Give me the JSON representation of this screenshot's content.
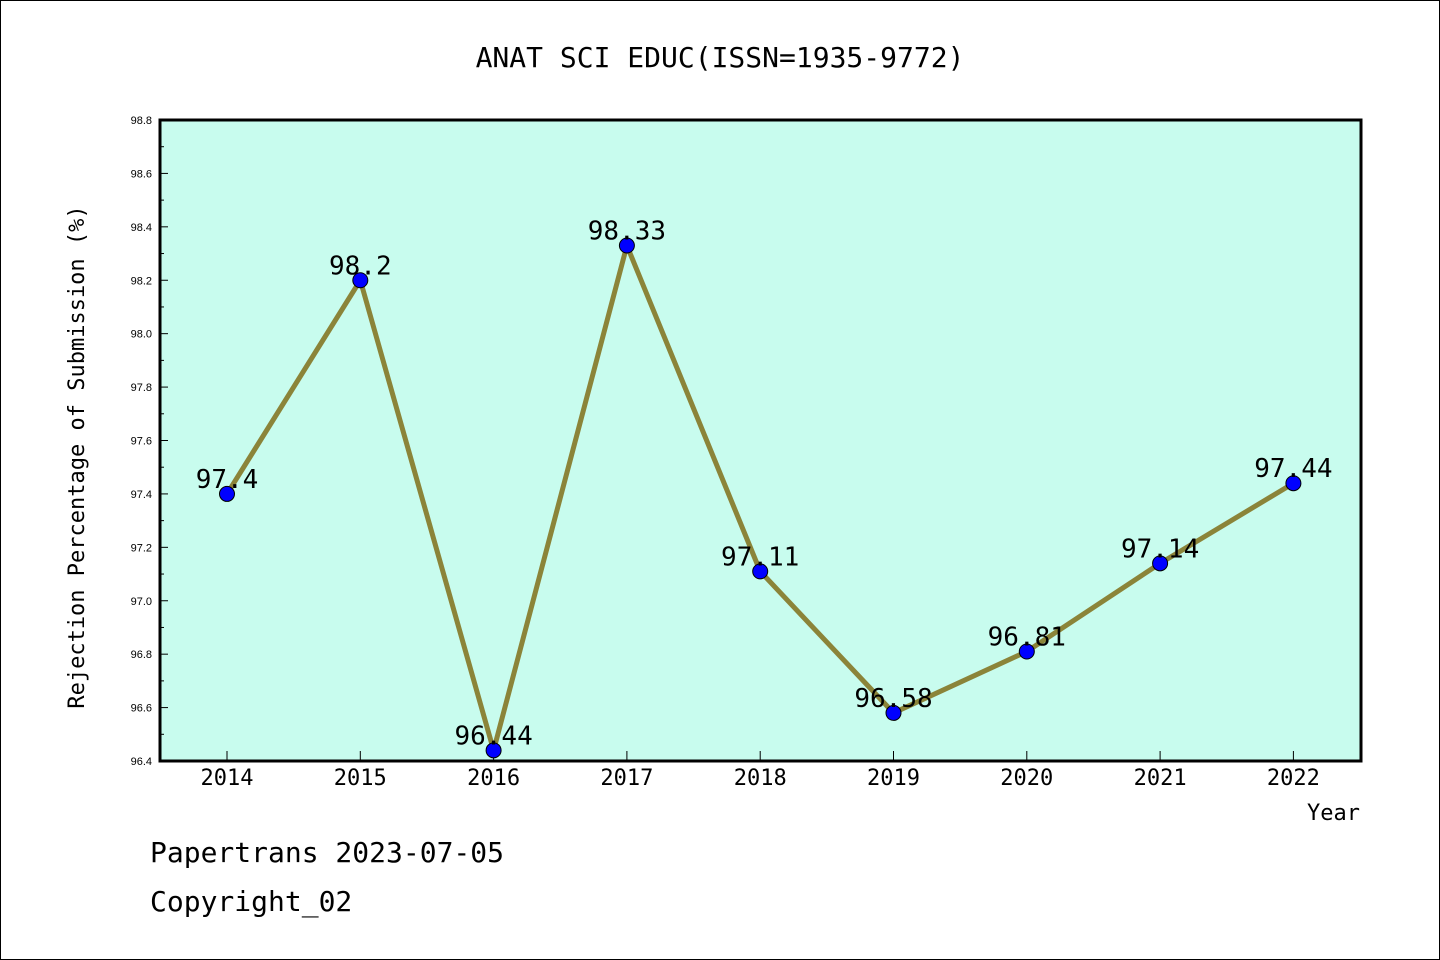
{
  "chart_data": {
    "type": "line",
    "title": "ANAT SCI EDUC(ISSN=1935-9772)",
    "xlabel": "Year",
    "ylabel": "Rejection Percentage of Submission (%)",
    "categories": [
      "2014",
      "2015",
      "2016",
      "2017",
      "2018",
      "2019",
      "2020",
      "2021",
      "2022"
    ],
    "values": [
      97.4,
      98.2,
      96.44,
      98.33,
      97.11,
      96.58,
      96.81,
      97.14,
      97.44
    ],
    "data_labels": [
      "97.4",
      "98.2",
      "96.44",
      "98.33",
      "97.11",
      "96.58",
      "96.81",
      "97.14",
      "97.44"
    ],
    "ylim": [
      96.4,
      98.8
    ],
    "yticks": [
      "96.4",
      "96.6",
      "96.8",
      "97.0",
      "97.2",
      "97.4",
      "97.6",
      "97.8",
      "98.0",
      "98.2",
      "98.4",
      "98.6",
      "98.8"
    ],
    "grid": false,
    "colors": {
      "plot_background": "#c8fcee",
      "line": "#8b8439",
      "marker": "#0000ff"
    }
  },
  "footer": {
    "line1": "Papertrans 2023-07-05",
    "line2": "Copyright_02"
  }
}
